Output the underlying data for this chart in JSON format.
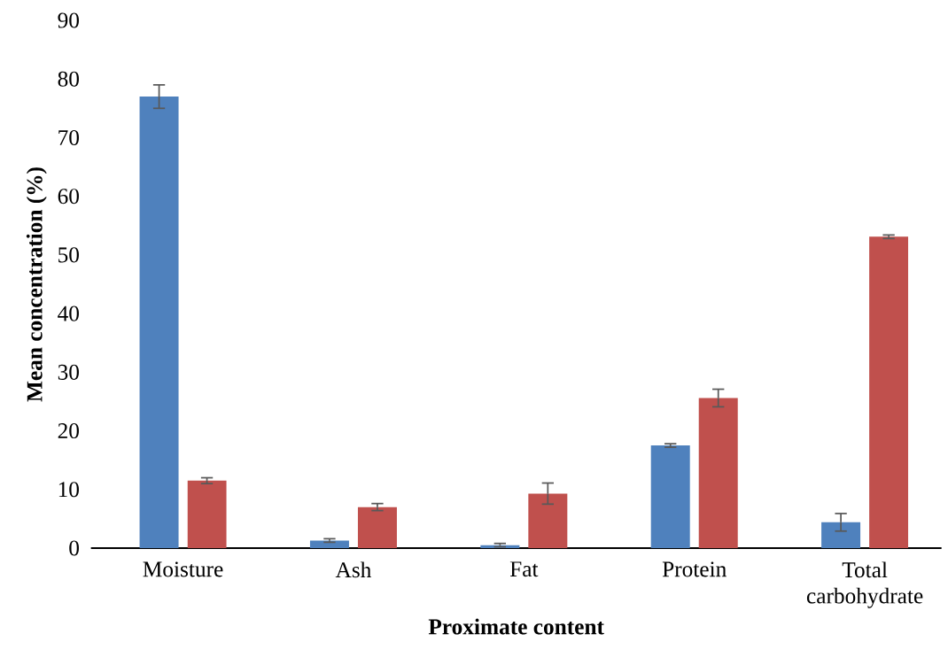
{
  "chart_data": {
    "type": "bar",
    "xlabel": "Proximate content",
    "ylabel": "Mean concentration (%)",
    "categories": [
      "Moisture",
      "Ash",
      "Fat",
      "Protein",
      "Total carbohydrate"
    ],
    "series": [
      {
        "color": "#4f81bd",
        "values": [
          77.0,
          1.3,
          0.5,
          17.5,
          4.4
        ],
        "errors": [
          2.0,
          0.3,
          0.3,
          0.3,
          1.5
        ]
      },
      {
        "color": "#c0504d",
        "values": [
          11.5,
          7.0,
          9.3,
          25.6,
          53.1
        ],
        "errors": [
          0.5,
          0.6,
          1.8,
          1.5,
          0.3
        ]
      }
    ],
    "ylim": [
      0,
      90
    ],
    "yticks": [
      0,
      10,
      20,
      30,
      40,
      50,
      60,
      70,
      80,
      90
    ],
    "grid": false,
    "legend": false
  }
}
